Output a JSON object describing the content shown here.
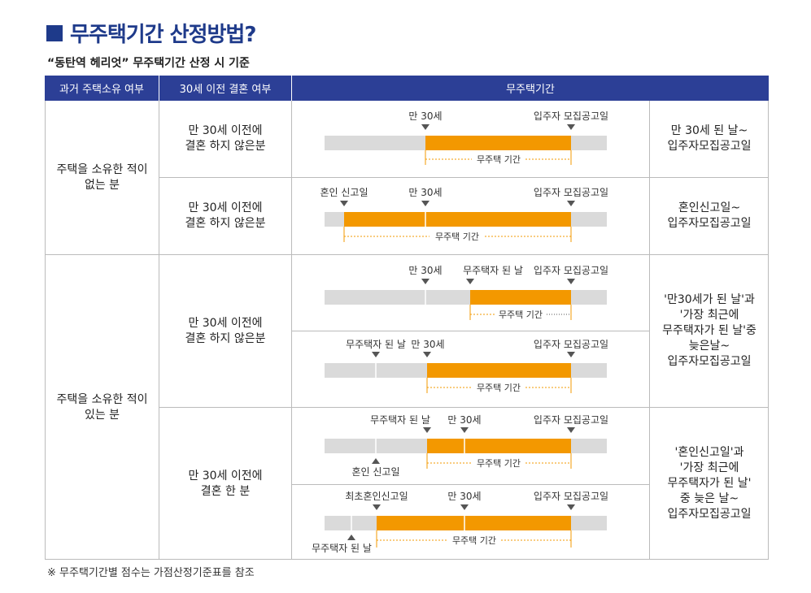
{
  "title": "무주택기간 산정방법?",
  "subtitle": "“동탄역 헤리엇” 무주택기간 산정 시 기준",
  "header": {
    "col1": "과거 주택소유 여부",
    "col2": "30세 이전 결혼 여부",
    "col3": "무주택기간"
  },
  "groups": [
    {
      "label": "주택을 소유한 적이\n없는 분"
    },
    {
      "label": "주택을 소유한 적이\n있는 분"
    }
  ],
  "marriage": [
    {
      "label": "만 30세 이전에\n결혼 하지 않은분"
    },
    {
      "label": "만 30세 이전에\n결혼 하지 않은분"
    },
    {
      "label": "만 30세 이전에\n결혼 하지 않은분"
    },
    {
      "label": "만 30세 이전에\n결혼 한 분"
    }
  ],
  "results": [
    {
      "text": "만 30세 된 날~\n입주자모집공고일"
    },
    {
      "text": "혼인신고일~\n입주자모집공고일"
    },
    {
      "text": "'만30세가 된 날'과\n'가장 최근에\n무주택자가 된 날'중\n늦은날~\n입주자모집공고일"
    },
    {
      "text": "'혼인신고일'과\n'가장 최근에\n무주택자가 된 날'\n중 늦은 날~\n입주자모집공고일"
    }
  ],
  "timelines": {
    "t1": {
      "top": [
        "만 30세",
        "입주자 모집공고일"
      ],
      "period": "무주택 기간"
    },
    "t2": {
      "top": [
        "혼인 신고일",
        "만 30세",
        "입주자 모집공고일"
      ],
      "period": "무주택 기간"
    },
    "t3": {
      "top": [
        "만 30세",
        "무주택자 된 날",
        "입주자 모집공고일"
      ],
      "period": "무주택 기간"
    },
    "t4": {
      "top": [
        "무주택자 된 날",
        "만 30세",
        "입주자 모집공고일"
      ],
      "period": "무주택 기간"
    },
    "t5": {
      "top": [
        "무주택자 된 날",
        "만 30세",
        "입주자 모집공고일"
      ],
      "bottom": "혼인 신고일",
      "period": "무주택 기간"
    },
    "t6": {
      "top": [
        "최초혼인신고일",
        "만 30세",
        "입주자 모집공고일"
      ],
      "bottom": "무주택자 된 날",
      "period": "무주택 기간"
    }
  },
  "colors": {
    "navy": "#1e3a8a",
    "header": "#2c3f96",
    "orange": "#f39800",
    "gray_bar": "#dadada"
  },
  "footnote": "※  무주택기간별 점수는 가점산정기준표를 참조"
}
